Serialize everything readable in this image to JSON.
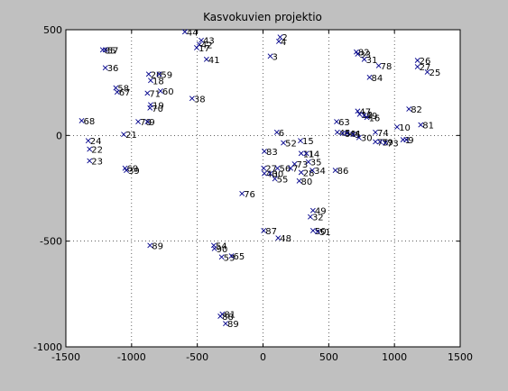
{
  "chart_data": {
    "type": "scatter",
    "title": "Kasvokuvien projektio",
    "xlabel": "",
    "ylabel": "",
    "xlim": [
      -1500,
      1500
    ],
    "ylim": [
      -1000,
      500
    ],
    "xticks": [
      -1500,
      -1000,
      -500,
      0,
      500,
      1000,
      1500
    ],
    "yticks": [
      -1000,
      -500,
      0,
      500
    ],
    "grid": true,
    "marker": "x",
    "colors": {
      "figure": "#c0c0c0",
      "axes": "#ffffff",
      "marker": "#00008b",
      "text": "#000000"
    },
    "points": [
      {
        "label": "44",
        "x": -595,
        "y": 490
      },
      {
        "label": "43",
        "x": -470,
        "y": 450
      },
      {
        "label": "42",
        "x": -485,
        "y": 430
      },
      {
        "label": "17",
        "x": -505,
        "y": 415
      },
      {
        "label": "41",
        "x": -430,
        "y": 360
      },
      {
        "label": "85",
        "x": -1220,
        "y": 405
      },
      {
        "label": "57",
        "x": -1200,
        "y": 405
      },
      {
        "label": "36",
        "x": -1200,
        "y": 320
      },
      {
        "label": "58",
        "x": -1120,
        "y": 225
      },
      {
        "label": "67",
        "x": -1110,
        "y": 205
      },
      {
        "label": "20",
        "x": -870,
        "y": 290
      },
      {
        "label": "59",
        "x": -790,
        "y": 290
      },
      {
        "label": "18",
        "x": -855,
        "y": 260
      },
      {
        "label": "71",
        "x": -880,
        "y": 200
      },
      {
        "label": "60",
        "x": -780,
        "y": 210
      },
      {
        "label": "38",
        "x": -540,
        "y": 175
      },
      {
        "label": "19",
        "x": -855,
        "y": 145
      },
      {
        "label": "70",
        "x": -860,
        "y": 130
      },
      {
        "label": "68",
        "x": -1380,
        "y": 70
      },
      {
        "label": "78",
        "x": -950,
        "y": 65
      },
      {
        "label": "9",
        "x": -880,
        "y": 65
      },
      {
        "label": "21",
        "x": -1060,
        "y": 5
      },
      {
        "label": "24",
        "x": -1330,
        "y": -25
      },
      {
        "label": "22",
        "x": -1320,
        "y": -65
      },
      {
        "label": "23",
        "x": -1320,
        "y": -120
      },
      {
        "label": "69",
        "x": -1050,
        "y": -155
      },
      {
        "label": "39",
        "x": -1040,
        "y": -165
      },
      {
        "label": "2",
        "x": 130,
        "y": 465
      },
      {
        "label": "4",
        "x": 120,
        "y": 445
      },
      {
        "label": "3",
        "x": 55,
        "y": 375
      },
      {
        "label": "6",
        "x": 105,
        "y": 15
      },
      {
        "label": "52",
        "x": 155,
        "y": -35
      },
      {
        "label": "15",
        "x": 285,
        "y": -25
      },
      {
        "label": "83",
        "x": 10,
        "y": -75
      },
      {
        "label": "11",
        "x": 290,
        "y": -85
      },
      {
        "label": "14",
        "x": 330,
        "y": -85
      },
      {
        "label": "73",
        "x": 240,
        "y": -135
      },
      {
        "label": "35",
        "x": 345,
        "y": -125
      },
      {
        "label": "27",
        "x": 5,
        "y": -155
      },
      {
        "label": "56",
        "x": 110,
        "y": -155
      },
      {
        "label": "7",
        "x": 210,
        "y": -155
      },
      {
        "label": "28",
        "x": 290,
        "y": -175
      },
      {
        "label": "34",
        "x": 375,
        "y": -165
      },
      {
        "label": "40",
        "x": 10,
        "y": -180
      },
      {
        "label": "30",
        "x": 55,
        "y": -180
      },
      {
        "label": "55",
        "x": 90,
        "y": -205
      },
      {
        "label": "80",
        "x": 275,
        "y": -215
      },
      {
        "label": "86",
        "x": 550,
        "y": -165
      },
      {
        "label": "76",
        "x": -160,
        "y": -275
      },
      {
        "label": "49",
        "x": 380,
        "y": -355
      },
      {
        "label": "32",
        "x": 360,
        "y": -385
      },
      {
        "label": "87",
        "x": 5,
        "y": -450
      },
      {
        "label": "50",
        "x": 380,
        "y": -450
      },
      {
        "label": "51",
        "x": 415,
        "y": -455
      },
      {
        "label": "48",
        "x": 115,
        "y": -485
      },
      {
        "label": "89",
        "x": -860,
        "y": -520
      },
      {
        "label": "54",
        "x": -375,
        "y": -520
      },
      {
        "label": "90",
        "x": -370,
        "y": -535
      },
      {
        "label": "53",
        "x": -315,
        "y": -575
      },
      {
        "label": "65",
        "x": -240,
        "y": -570
      },
      {
        "label": "81",
        "x": -310,
        "y": -845
      },
      {
        "label": "88",
        "x": -325,
        "y": -855
      },
      {
        "label": "89",
        "x": -285,
        "y": -890
      },
      {
        "label": "63",
        "x": 560,
        "y": 65
      },
      {
        "label": "45",
        "x": 565,
        "y": 15
      },
      {
        "label": "64",
        "x": 605,
        "y": 10
      },
      {
        "label": "44",
        "x": 640,
        "y": 10
      },
      {
        "label": "5",
        "x": 685,
        "y": 5
      },
      {
        "label": "30",
        "x": 730,
        "y": -10
      },
      {
        "label": "47",
        "x": 720,
        "y": 115
      },
      {
        "label": "12",
        "x": 735,
        "y": 100
      },
      {
        "label": "49",
        "x": 770,
        "y": 95
      },
      {
        "label": "16",
        "x": 790,
        "y": 85
      },
      {
        "label": "82",
        "x": 710,
        "y": 395
      },
      {
        "label": "33",
        "x": 720,
        "y": 385
      },
      {
        "label": "31",
        "x": 770,
        "y": 360
      },
      {
        "label": "78",
        "x": 880,
        "y": 330
      },
      {
        "label": "84",
        "x": 810,
        "y": 275
      },
      {
        "label": "74",
        "x": 855,
        "y": 15
      },
      {
        "label": "75",
        "x": 855,
        "y": -30
      },
      {
        "label": "79",
        "x": 890,
        "y": -30
      },
      {
        "label": "73",
        "x": 930,
        "y": -35
      },
      {
        "label": "10",
        "x": 1020,
        "y": 40
      },
      {
        "label": "1",
        "x": 1065,
        "y": -20
      },
      {
        "label": "9",
        "x": 1090,
        "y": -20
      },
      {
        "label": "82",
        "x": 1110,
        "y": 125
      },
      {
        "label": "81",
        "x": 1200,
        "y": 50
      },
      {
        "label": "26",
        "x": 1175,
        "y": 355
      },
      {
        "label": "27",
        "x": 1175,
        "y": 325
      },
      {
        "label": "25",
        "x": 1250,
        "y": 300
      }
    ]
  }
}
